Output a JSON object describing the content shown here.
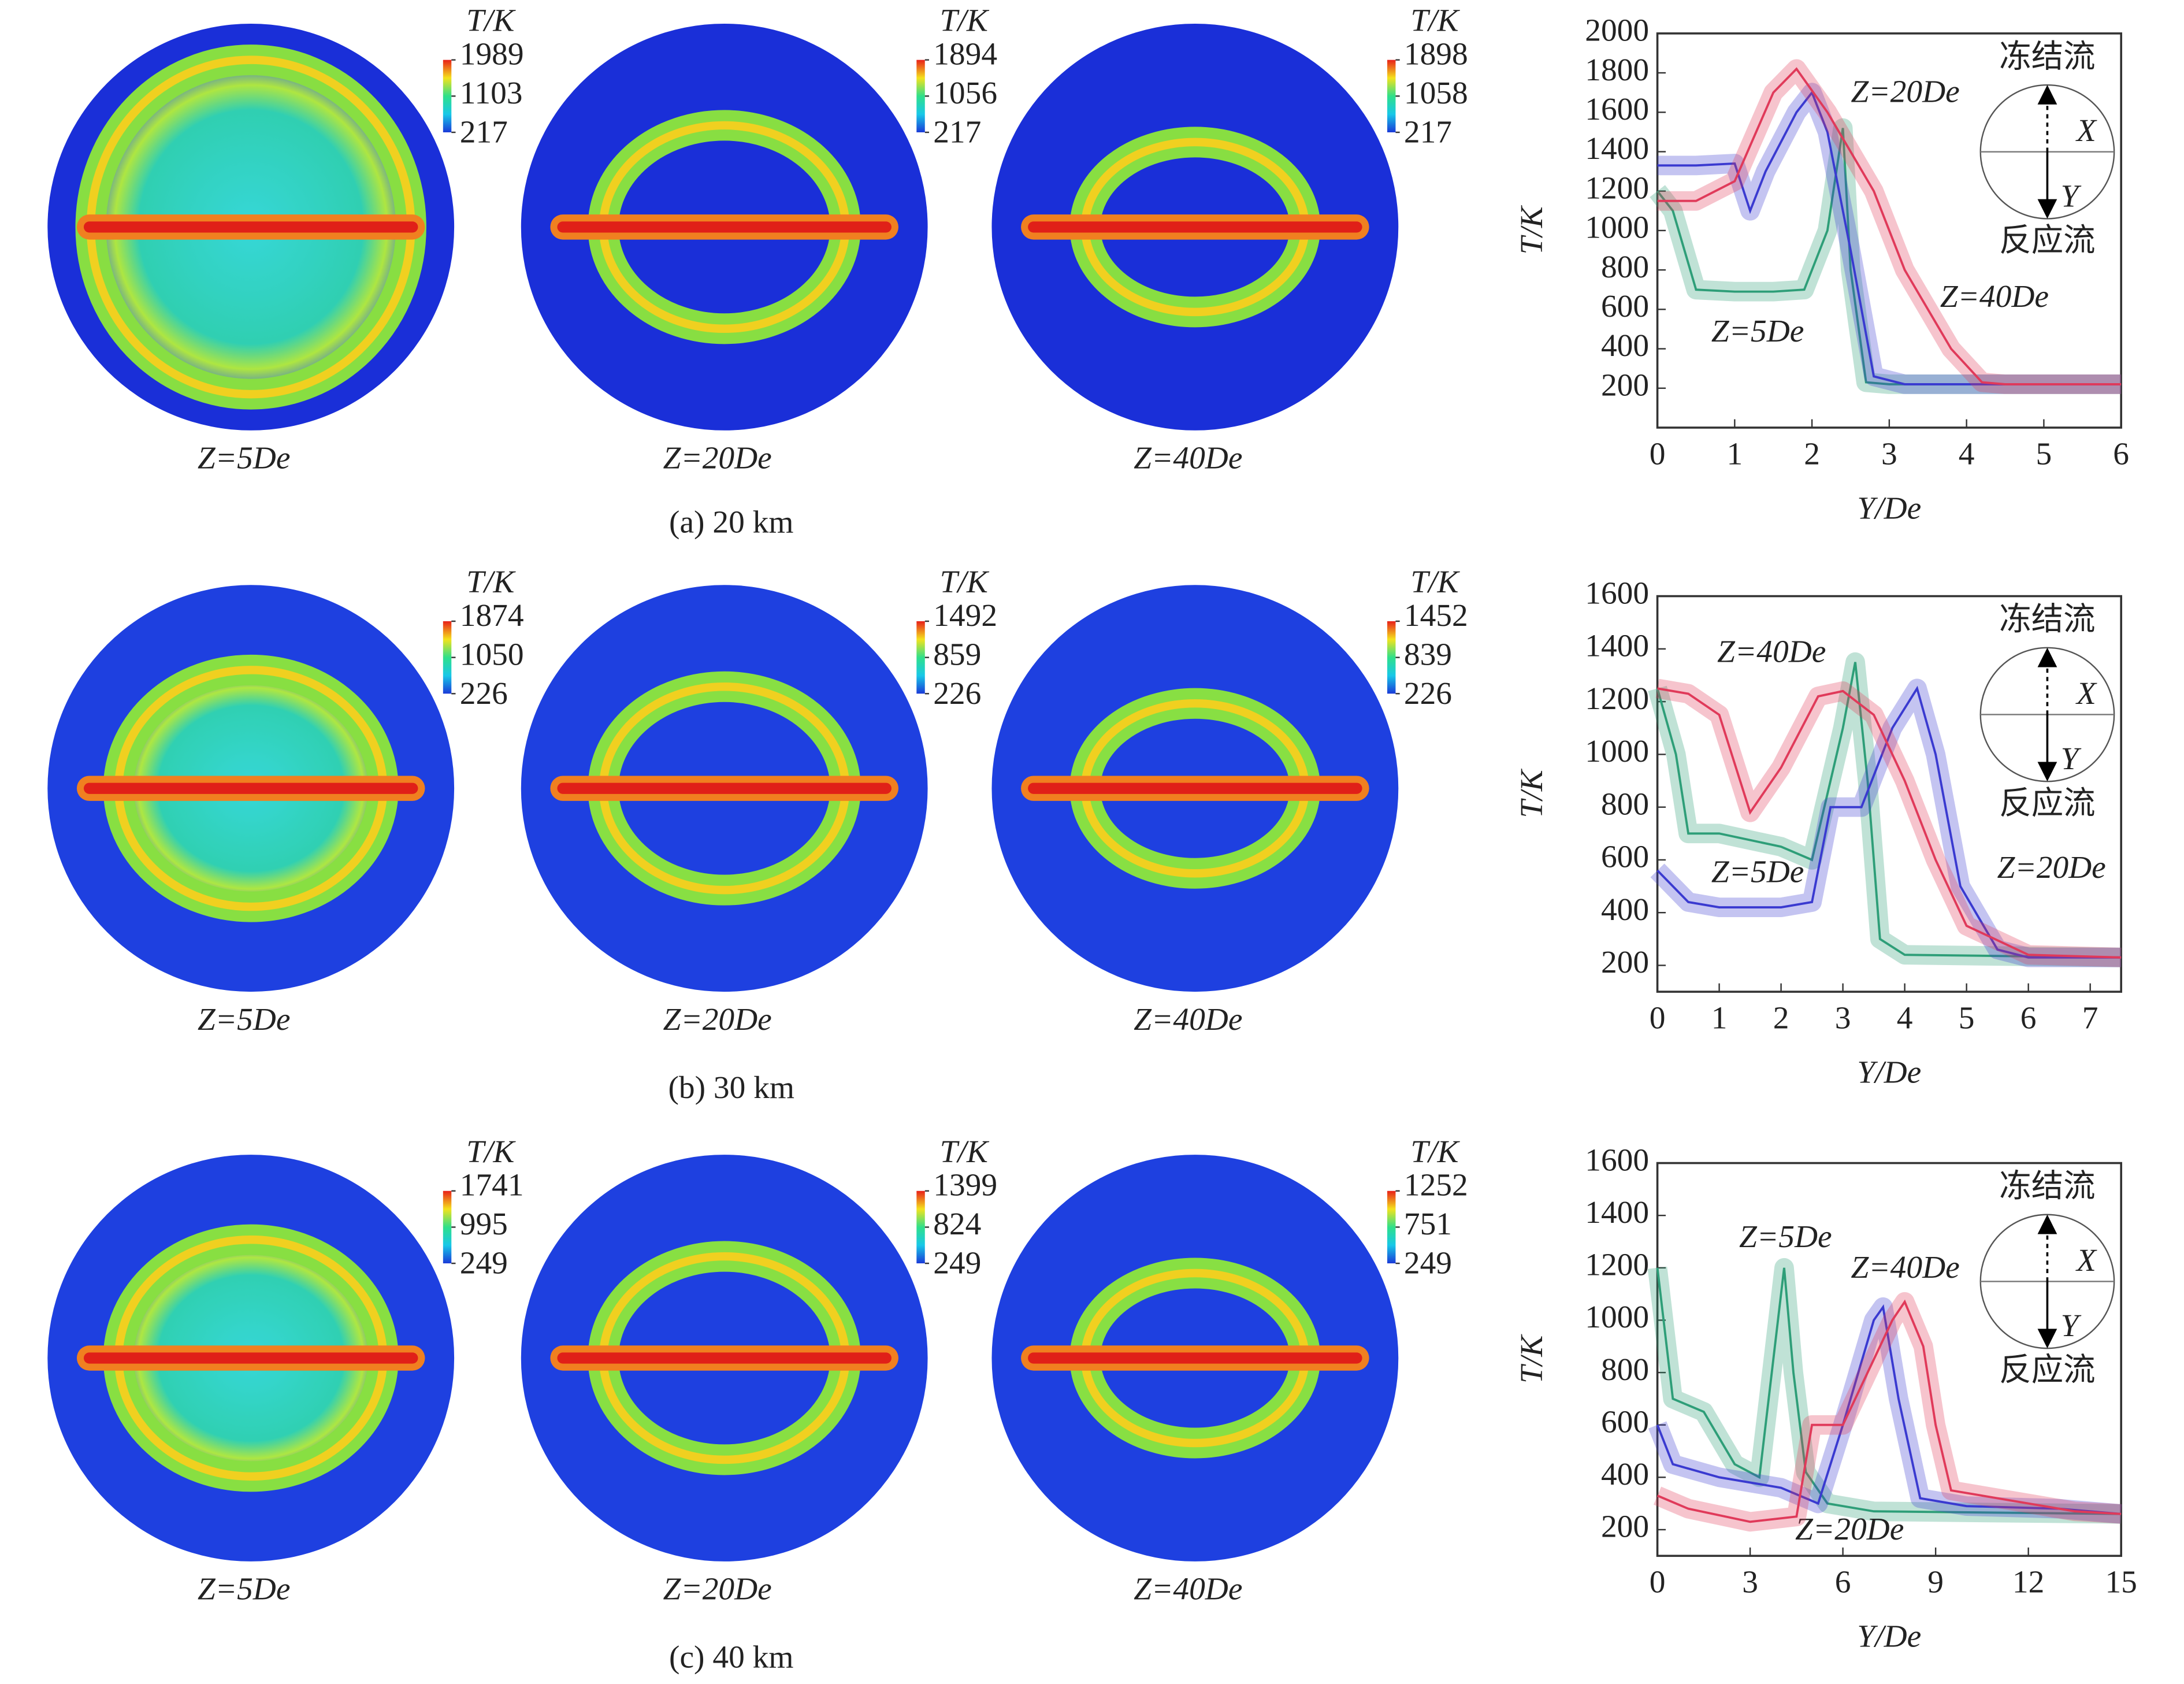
{
  "panels": [
    {
      "caption": "(a) 20 km",
      "maps": [
        {
          "label": "Z=5De",
          "colorbar": {
            "title": "T/K",
            "ticks": [
              1989,
              1103,
              217
            ]
          }
        },
        {
          "label": "Z=20De",
          "colorbar": {
            "title": "T/K",
            "ticks": [
              1894,
              1056,
              217
            ]
          }
        },
        {
          "label": "Z=40De",
          "colorbar": {
            "title": "T/K",
            "ticks": [
              1898,
              1058,
              217
            ]
          }
        }
      ]
    },
    {
      "caption": "(b) 30 km",
      "maps": [
        {
          "label": "Z=5De",
          "colorbar": {
            "title": "T/K",
            "ticks": [
              1874,
              1050,
              226
            ]
          }
        },
        {
          "label": "Z=20De",
          "colorbar": {
            "title": "T/K",
            "ticks": [
              1492,
              859,
              226
            ]
          }
        },
        {
          "label": "Z=40De",
          "colorbar": {
            "title": "T/K",
            "ticks": [
              1452,
              839,
              226
            ]
          }
        }
      ]
    },
    {
      "caption": "(c) 40 km",
      "maps": [
        {
          "label": "Z=5De",
          "colorbar": {
            "title": "T/K",
            "ticks": [
              1741,
              995,
              249
            ]
          }
        },
        {
          "label": "Z=20De",
          "colorbar": {
            "title": "T/K",
            "ticks": [
              1399,
              824,
              249
            ]
          }
        },
        {
          "label": "Z=40De",
          "colorbar": {
            "title": "T/K",
            "ticks": [
              1252,
              751,
              249
            ]
          }
        }
      ]
    }
  ],
  "chart_data": [
    {
      "type": "line",
      "x_label": "Y/De",
      "y_label": "T/K",
      "xlim": [
        0,
        6
      ],
      "xticks": [
        0,
        1,
        2,
        3,
        4,
        5,
        6
      ],
      "ylim": [
        0,
        2000
      ],
      "yticks": [
        200,
        400,
        600,
        800,
        1000,
        1200,
        1400,
        1600,
        1800,
        2000
      ],
      "inset": {
        "top": "冻结流",
        "bottom": "反应流",
        "x": "X",
        "y": "Y"
      },
      "series": [
        {
          "name": "Z=5De",
          "color": "#2e9e78",
          "x": [
            0,
            0.2,
            0.5,
            1,
            1.5,
            1.9,
            2.2,
            2.4,
            2.5,
            2.7,
            3,
            6
          ],
          "y": [
            1200,
            1100,
            700,
            690,
            690,
            700,
            1000,
            1520,
            800,
            230,
            220,
            220
          ]
        },
        {
          "name": "Z=20De",
          "color": "#3a3ad0",
          "x": [
            0,
            0.5,
            1,
            1.2,
            1.4,
            1.8,
            2,
            2.2,
            2.5,
            2.8,
            3.2,
            6
          ],
          "y": [
            1330,
            1330,
            1340,
            1100,
            1300,
            1600,
            1700,
            1500,
            900,
            260,
            220,
            220
          ]
        },
        {
          "name": "Z=40De",
          "color": "#e03a5a",
          "x": [
            0,
            0.5,
            1,
            1.5,
            1.8,
            2.2,
            2.8,
            3.2,
            3.8,
            4.2,
            4.5,
            6
          ],
          "y": [
            1150,
            1150,
            1250,
            1700,
            1820,
            1600,
            1200,
            800,
            400,
            230,
            220,
            220
          ]
        }
      ]
    },
    {
      "type": "line",
      "x_label": "Y/De",
      "y_label": "T/K",
      "xlim": [
        0,
        7.5
      ],
      "xticks": [
        0,
        1,
        2,
        3,
        4,
        5,
        6,
        7
      ],
      "ylim": [
        100,
        1600
      ],
      "yticks": [
        200,
        400,
        600,
        800,
        1000,
        1200,
        1400,
        1600
      ],
      "inset": {
        "top": "冻结流",
        "bottom": "反应流",
        "x": "X",
        "y": "Y"
      },
      "series": [
        {
          "name": "Z=5De",
          "color": "#2e9e78",
          "x": [
            0,
            0.3,
            0.5,
            1,
            2,
            2.5,
            3,
            3.2,
            3.4,
            3.6,
            4,
            7.5
          ],
          "y": [
            1250,
            1000,
            700,
            700,
            650,
            600,
            1100,
            1350,
            900,
            300,
            240,
            230
          ]
        },
        {
          "name": "Z=20De",
          "color": "#3a3ad0",
          "x": [
            0,
            0.5,
            1,
            2,
            2.5,
            2.8,
            3.3,
            3.8,
            4.2,
            4.5,
            4.9,
            5.5,
            6,
            7.5
          ],
          "y": [
            560,
            440,
            420,
            420,
            440,
            800,
            800,
            1100,
            1250,
            1000,
            500,
            260,
            230,
            230
          ]
        },
        {
          "name": "Z=40De",
          "color": "#e03a5a",
          "x": [
            0,
            0.5,
            1,
            1.5,
            2,
            2.6,
            3,
            3.5,
            4,
            4.5,
            5,
            6,
            7.5
          ],
          "y": [
            1250,
            1230,
            1150,
            780,
            950,
            1220,
            1240,
            1150,
            900,
            600,
            350,
            240,
            230
          ]
        }
      ]
    },
    {
      "type": "line",
      "x_label": "Y/De",
      "y_label": "T/K",
      "xlim": [
        0,
        15
      ],
      "xticks": [
        0,
        3,
        6,
        9,
        12,
        15
      ],
      "ylim": [
        100,
        1600
      ],
      "yticks": [
        200,
        400,
        600,
        800,
        1000,
        1200,
        1400,
        1600
      ],
      "inset": {
        "top": "冻结流",
        "bottom": "反应流",
        "x": "X",
        "y": "Y"
      },
      "series": [
        {
          "name": "Z=5De",
          "color": "#2e9e78",
          "x": [
            0,
            0.5,
            1.5,
            2.5,
            3.3,
            3.8,
            4.1,
            4.4,
            4.8,
            5.5,
            7,
            15
          ],
          "y": [
            1200,
            700,
            650,
            450,
            400,
            900,
            1200,
            800,
            420,
            300,
            270,
            260
          ]
        },
        {
          "name": "Z=20De",
          "color": "#3a3ad0",
          "x": [
            0,
            0.5,
            2,
            4,
            5.2,
            6,
            7,
            7.3,
            7.8,
            8.5,
            10,
            13,
            15
          ],
          "y": [
            600,
            450,
            400,
            360,
            300,
            600,
            1000,
            1050,
            700,
            320,
            290,
            280,
            260
          ]
        },
        {
          "name": "Z=40De",
          "color": "#e03a5a",
          "x": [
            0,
            1,
            3,
            4.5,
            5,
            6,
            6.8,
            7.6,
            8,
            8.6,
            9,
            9.5,
            12,
            13.5,
            15
          ],
          "y": [
            330,
            280,
            230,
            250,
            600,
            600,
            800,
            1000,
            1070,
            900,
            600,
            350,
            300,
            270,
            260
          ]
        }
      ]
    }
  ]
}
